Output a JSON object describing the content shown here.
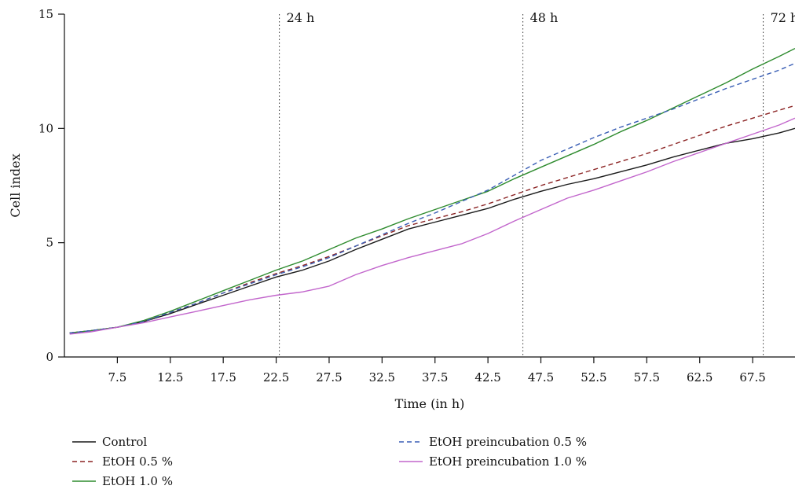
{
  "chart_data": {
    "type": "line",
    "title": "",
    "xlabel": "Time (in h)",
    "ylabel": "Cell index",
    "xlim": [
      2.5,
      71.5
    ],
    "ylim": [
      0,
      15
    ],
    "xticks": [
      7.5,
      12.5,
      17.5,
      22.5,
      27.5,
      32.5,
      37.5,
      42.5,
      47.5,
      52.5,
      57.5,
      62.5,
      67.5
    ],
    "xtick_labels": [
      "7.5",
      "12.5",
      "17.5",
      "22.5",
      "27.5",
      "32.5",
      "37.5",
      "42.5",
      "47.5",
      "52.5",
      "57.5",
      "62.5",
      "67.5"
    ],
    "yticks": [
      0,
      5,
      10,
      15
    ],
    "ytick_labels": [
      "0",
      "5",
      "10",
      "15"
    ],
    "grid": false,
    "legend_position": "bottom",
    "markers": [
      {
        "x": 22.8,
        "label": "24 h"
      },
      {
        "x": 45.8,
        "label": "48 h"
      },
      {
        "x": 68.5,
        "label": "72 h"
      }
    ],
    "series": [
      {
        "name": "Control",
        "color": "#1a1a1a",
        "dash": "solid",
        "x": [
          3,
          5,
          7.5,
          10,
          12.5,
          15,
          17.5,
          20,
          22.5,
          25,
          27.5,
          30,
          32.5,
          35,
          37.5,
          40,
          42.5,
          45,
          47.5,
          50,
          52.5,
          55,
          57.5,
          60,
          62.5,
          65,
          67.5,
          70,
          71.5
        ],
        "y": [
          1.05,
          1.15,
          1.3,
          1.55,
          1.9,
          2.3,
          2.7,
          3.1,
          3.5,
          3.8,
          4.2,
          4.7,
          5.15,
          5.6,
          5.9,
          6.2,
          6.5,
          6.9,
          7.25,
          7.55,
          7.8,
          8.1,
          8.4,
          8.75,
          9.05,
          9.35,
          9.55,
          9.8,
          10.0
        ]
      },
      {
        "name": "EtOH 0.5 %",
        "color": "#8b2323",
        "dash": "dashed",
        "x": [
          3,
          5,
          7.5,
          10,
          12.5,
          15,
          17.5,
          20,
          22.5,
          25,
          27.5,
          30,
          32.5,
          35,
          37.5,
          40,
          42.5,
          45,
          47.5,
          50,
          52.5,
          55,
          57.5,
          60,
          62.5,
          65,
          67.5,
          70,
          71.5
        ],
        "y": [
          1.05,
          1.15,
          1.3,
          1.55,
          1.95,
          2.35,
          2.8,
          3.25,
          3.65,
          4.0,
          4.4,
          4.85,
          5.3,
          5.75,
          6.05,
          6.35,
          6.7,
          7.1,
          7.5,
          7.85,
          8.2,
          8.55,
          8.9,
          9.3,
          9.7,
          10.1,
          10.45,
          10.8,
          11.0
        ]
      },
      {
        "name": "EtOH 1.0 %",
        "color": "#2e8b2e",
        "dash": "solid",
        "x": [
          3,
          5,
          7.5,
          10,
          12.5,
          15,
          17.5,
          20,
          22.5,
          25,
          27.5,
          30,
          32.5,
          35,
          37.5,
          40,
          42.5,
          45,
          47.5,
          50,
          52.5,
          55,
          57.5,
          60,
          62.5,
          65,
          67.5,
          70,
          71.5
        ],
        "y": [
          1.05,
          1.15,
          1.3,
          1.6,
          2.0,
          2.45,
          2.9,
          3.35,
          3.8,
          4.2,
          4.7,
          5.2,
          5.6,
          6.05,
          6.45,
          6.85,
          7.25,
          7.8,
          8.3,
          8.8,
          9.3,
          9.85,
          10.35,
          10.9,
          11.45,
          12.0,
          12.6,
          13.15,
          13.5
        ]
      },
      {
        "name": "EtOH preincubation 0.5 %",
        "color": "#3a5fb5",
        "dash": "dashed",
        "x": [
          3,
          5,
          7.5,
          10,
          12.5,
          15,
          17.5,
          20,
          22.5,
          25,
          27.5,
          30,
          32.5,
          35,
          37.5,
          40,
          42.5,
          45,
          47.5,
          50,
          52.5,
          55,
          57.5,
          60,
          62.5,
          65,
          67.5,
          70,
          71.5
        ],
        "y": [
          1.05,
          1.15,
          1.3,
          1.55,
          1.95,
          2.35,
          2.8,
          3.2,
          3.6,
          3.95,
          4.35,
          4.85,
          5.35,
          5.85,
          6.3,
          6.8,
          7.3,
          7.95,
          8.6,
          9.1,
          9.6,
          10.05,
          10.45,
          10.85,
          11.3,
          11.75,
          12.15,
          12.55,
          12.85
        ]
      },
      {
        "name": "EtOH preincubation 1.0 %",
        "color": "#c266cc",
        "dash": "solid",
        "x": [
          3,
          5,
          7.5,
          10,
          12.5,
          15,
          17.5,
          20,
          22.5,
          25,
          27.5,
          30,
          32.5,
          35,
          37.5,
          40,
          42.5,
          45,
          47.5,
          50,
          52.5,
          55,
          57.5,
          60,
          62.5,
          65,
          67.5,
          70,
          71.5
        ],
        "y": [
          1.0,
          1.1,
          1.3,
          1.5,
          1.75,
          2.0,
          2.25,
          2.5,
          2.7,
          2.85,
          3.1,
          3.6,
          4.0,
          4.35,
          4.65,
          4.95,
          5.4,
          5.95,
          6.45,
          6.95,
          7.3,
          7.7,
          8.1,
          8.55,
          8.95,
          9.35,
          9.75,
          10.15,
          10.45
        ]
      }
    ]
  }
}
